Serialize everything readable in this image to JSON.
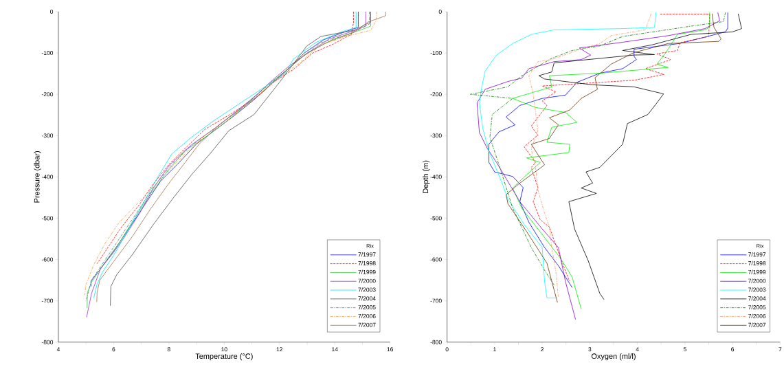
{
  "chart_data": [
    {
      "type": "line",
      "xlabel": "Temperature (°C)",
      "ylabel": "Pressure (dbar)",
      "legend_title": "Rix",
      "legend": "bottom right",
      "xlim": [
        4,
        16
      ],
      "ylim": [
        -800,
        0
      ],
      "xticks": [
        4,
        {
          "value": 5,
          "label": null
        },
        6,
        {
          "value": 7,
          "label": null
        },
        8,
        {
          "value": 9,
          "label": null
        },
        10,
        {
          "value": 11,
          "label": null
        },
        12,
        {
          "value": 13,
          "label": null
        },
        14,
        {
          "value": 15,
          "label": null
        },
        16
      ],
      "yticks": [
        -800,
        -700,
        -600,
        -500,
        -400,
        -300,
        -200,
        -100,
        0
      ],
      "series": [
        {
          "name": "7/1997",
          "color": "#1414c8",
          "line_style": "solid",
          "x": [
            14.85,
            14.85,
            14.4,
            13.6,
            12.9,
            12.3,
            11.7,
            11.05,
            10.4,
            9.6,
            9.0,
            8.3,
            7.7,
            7.1,
            6.5,
            6.0,
            5.5,
            5.18,
            5.18
          ],
          "values": [
            0,
            -38,
            -48,
            -68,
            -100,
            -140,
            -175,
            -215,
            -250,
            -290,
            -320,
            -370,
            -410,
            -470,
            -530,
            -580,
            -625,
            -652,
            -665
          ]
        },
        {
          "name": "7/1998",
          "color": "#ff0000",
          "line_style": "dashed",
          "x": [
            14.68,
            14.68,
            14.6,
            13.9,
            13.2,
            12.5,
            11.8,
            11.1,
            10.3,
            9.3,
            8.6,
            8.0,
            7.4,
            6.9,
            6.3,
            5.8,
            5.4
          ],
          "values": [
            0,
            -25,
            -55,
            -80,
            -100,
            -140,
            -170,
            -210,
            -245,
            -285,
            -330,
            -370,
            -420,
            -470,
            -520,
            -570,
            -610
          ]
        },
        {
          "name": "7/1999",
          "color": "#33cc33",
          "line_style": "solid",
          "x": [
            15.3,
            15.3,
            14.9,
            14.0,
            13.0,
            12.2,
            11.6,
            10.8,
            10.0,
            9.3,
            8.6,
            7.9,
            7.3,
            6.8,
            6.2,
            5.7,
            5.2,
            5.05,
            5.04
          ],
          "values": [
            0,
            -35,
            -45,
            -65,
            -100,
            -145,
            -175,
            -225,
            -270,
            -305,
            -335,
            -390,
            -445,
            -495,
            -560,
            -605,
            -655,
            -680,
            -718
          ]
        },
        {
          "name": "7/2000",
          "color": "#9933cc",
          "line_style": "solid",
          "x": [
            15.12,
            15.12,
            14.8,
            13.8,
            12.99,
            12.32,
            11.74,
            11.16,
            10.5,
            9.67,
            8.84,
            8.02,
            7.44,
            6.94,
            6.36,
            5.95,
            5.53,
            5.2,
            5.02
          ],
          "values": [
            0,
            -35,
            -44,
            -66,
            -102,
            -133,
            -166,
            -202,
            -238,
            -282,
            -321,
            -371,
            -427,
            -488,
            -549,
            -587,
            -621,
            -682,
            -740
          ]
        },
        {
          "name": "7/2003",
          "color": "#00e5ff",
          "line_style": "solid",
          "x": [
            14.77,
            14.77,
            14.2,
            13.3,
            12.5,
            12.2,
            11.4,
            10.5,
            9.6,
            8.8,
            8.1,
            7.6,
            7.1,
            6.6,
            6.0,
            5.6,
            5.4,
            5.28
          ],
          "values": [
            0,
            -38,
            -50,
            -75,
            -115,
            -150,
            -185,
            -225,
            -265,
            -305,
            -345,
            -400,
            -460,
            -520,
            -590,
            -630,
            -660,
            -693
          ]
        },
        {
          "name": "7/2004",
          "color": "#4d4d4d",
          "line_style": "solid",
          "x": [
            15.3,
            15.3,
            14.7,
            13.5,
            12.99,
            12.0,
            11.08,
            10.17,
            9.5,
            8.84,
            8.18,
            7.44,
            6.69,
            6.11,
            5.9,
            5.88
          ],
          "values": [
            0,
            -25,
            -45,
            -60,
            -83,
            -171,
            -249,
            -288,
            -343,
            -393,
            -449,
            -515,
            -587,
            -637,
            -665,
            -712
          ]
        },
        {
          "name": "7/2005",
          "color": "#5a7a7a",
          "line_style": "dashdot",
          "x": [
            15.25,
            15.25,
            14.5,
            13.5,
            12.8,
            12.1,
            11.3,
            10.5,
            9.7,
            8.9,
            8.1,
            7.5,
            6.9,
            6.3,
            5.7,
            5.2,
            5.0
          ],
          "values": [
            0,
            -30,
            -55,
            -75,
            -110,
            -150,
            -195,
            -240,
            -280,
            -320,
            -370,
            -420,
            -480,
            -540,
            -600,
            -650,
            -700
          ]
        },
        {
          "name": "7/2006",
          "color": "#ff9933",
          "line_style": "dashdot",
          "x": [
            15.51,
            15.51,
            15.3,
            14.4,
            13.5,
            12.7,
            11.9,
            11.0,
            10.2,
            9.3,
            8.5,
            7.7,
            7.0,
            6.2,
            5.7,
            5.3,
            5.0,
            4.95
          ],
          "values": [
            0,
            -20,
            -45,
            -60,
            -80,
            -125,
            -165,
            -215,
            -260,
            -300,
            -350,
            -405,
            -455,
            -510,
            -560,
            -610,
            -660,
            -686
          ]
        },
        {
          "name": "7/2007",
          "color": "#a0704a",
          "line_style": "solid",
          "x": [
            15.84,
            15.84,
            15.2,
            14.7,
            13.7,
            12.9,
            12.1,
            11.4,
            10.6,
            9.8,
            9.1,
            8.3,
            8.06,
            7.35,
            6.69,
            6.0,
            5.5,
            5.4,
            5.39
          ],
          "values": [
            0,
            -10,
            -25,
            -50,
            -75,
            -105,
            -150,
            -195,
            -235,
            -275,
            -320,
            -390,
            -410,
            -476,
            -543,
            -605,
            -650,
            -680,
            -703
          ]
        }
      ]
    },
    {
      "type": "line",
      "xlabel": "Oxygen (ml/l)",
      "ylabel": "Depth (m)",
      "legend_title": "Rix",
      "legend": "bottom right",
      "xlim": [
        0,
        7
      ],
      "ylim": [
        -800,
        0
      ],
      "xticks": [
        0,
        {
          "value": 0.5,
          "label": null
        },
        1,
        {
          "value": 1.5,
          "label": null
        },
        2,
        {
          "value": 2.5,
          "label": null
        },
        3,
        {
          "value": 3.5,
          "label": null
        },
        4,
        {
          "value": 4.5,
          "label": null
        },
        5,
        {
          "value": 5.5,
          "label": null
        },
        6,
        {
          "value": 6.5,
          "label": null
        },
        7
      ],
      "yticks": [
        -800,
        -700,
        -600,
        -500,
        -400,
        -300,
        -200,
        -100,
        0
      ],
      "series": [
        {
          "name": "7/1997",
          "color": "#0000ff",
          "line_style": "solid",
          "x": [
            5.9,
            5.9,
            5.85,
            4.89,
            3.93,
            3.93,
            3.98,
            3.69,
            3.21,
            2.73,
            2.49,
            2.0,
            1.53,
            1.24,
            1.43,
            1.09,
            0.88,
            0.88,
            1.0,
            1.38,
            1.6,
            1.53,
            1.72,
            2.05,
            2.34,
            2.63
          ],
          "values": [
            -2,
            -40,
            -49,
            -77,
            -91,
            -108,
            -116,
            -138,
            -149,
            -171,
            -202,
            -210,
            -227,
            -255,
            -274,
            -291,
            -321,
            -365,
            -388,
            -399,
            -426,
            -460,
            -510,
            -571,
            -615,
            -668
          ]
        },
        {
          "name": "7/1998",
          "color": "#ff0000",
          "line_style": "dashed",
          "x": [
            4.48,
            5.52,
            5.5,
            4.9,
            4.84,
            4.41,
            4.7,
            4.17,
            4.56,
            3.93,
            2.82,
            2.0,
            2.29,
            2.0,
            2.1,
            1.77,
            1.91,
            1.62,
            1.86,
            1.77,
            1.91,
            1.81,
            1.96,
            2.15,
            2.25,
            2.39,
            2.57
          ],
          "values": [
            -6,
            -6,
            -60,
            -75,
            -94,
            -102,
            -116,
            -138,
            -152,
            -166,
            -174,
            -180,
            -194,
            -216,
            -227,
            -277,
            -299,
            -327,
            -365,
            -377,
            -426,
            -460,
            -504,
            -521,
            -554,
            -598,
            -652
          ]
        },
        {
          "name": "7/1999",
          "color": "#00ee00",
          "line_style": "solid",
          "x": [
            5.52,
            5.52,
            5.42,
            4.84,
            4.75,
            4.6,
            4.41,
            4.65,
            3.21,
            2.15,
            2.2,
            1.38,
            1.86,
            2.49,
            2.73,
            2.2,
            2.1,
            2.58,
            2.56,
            1.67,
            1.96,
            1.53,
            1.38,
            1.57,
            1.91,
            2.39,
            2.63,
            2.82
          ],
          "values": [
            -2,
            -38,
            -44,
            -55,
            -72,
            -99,
            -127,
            -135,
            -149,
            -155,
            -182,
            -210,
            -232,
            -244,
            -268,
            -280,
            -316,
            -321,
            -341,
            -354,
            -365,
            -410,
            -427,
            -476,
            -526,
            -598,
            -643,
            -720
          ]
        },
        {
          "name": "7/2000",
          "color": "#8800cc",
          "line_style": "solid",
          "x": [
            5.69,
            5.73,
            5.42,
            4.65,
            3.69,
            2.78,
            3.02,
            2.82,
            2.25,
            1.72,
            1.57,
            1.28,
            0.8,
            0.63,
            0.68,
            0.85,
            1.04,
            1.53,
            2.0,
            2.34,
            2.49,
            2.7
          ],
          "values": [
            -2,
            -22,
            -41,
            -58,
            -74,
            -88,
            -105,
            -116,
            -121,
            -138,
            -161,
            -169,
            -188,
            -221,
            -293,
            -332,
            -365,
            -460,
            -526,
            -571,
            -654,
            -745
          ]
        },
        {
          "name": "7/2003",
          "color": "#00ffff",
          "line_style": "solid",
          "x": [
            4.39,
            4.36,
            3.69,
            2.25,
            1.77,
            1.38,
            1.04,
            0.8,
            0.73,
            0.68,
            0.75,
            0.88,
            1.14,
            1.28,
            1.62,
            2.0,
            2.05,
            2.1,
            2.29
          ],
          "values": [
            -2,
            -38,
            -41,
            -44,
            -55,
            -77,
            -105,
            -144,
            -182,
            -221,
            -282,
            -338,
            -410,
            -454,
            -515,
            -571,
            -654,
            -693,
            -693
          ]
        },
        {
          "name": "7/2004",
          "color": "#000000",
          "line_style": "solid",
          "x": [
            6.12,
            6.19,
            6.0,
            5.13,
            4.32,
            3.69,
            4.36,
            3.93,
            2.25,
            2.2,
            1.93,
            2.05,
            3.05,
            3.93,
            4.55,
            4.41,
            4.22,
            3.79,
            3.69,
            3.21,
            2.92,
            3.06,
            2.82,
            3.14,
            2.56,
            2.68,
            2.97,
            3.21,
            3.3
          ],
          "values": [
            -5,
            -41,
            -49,
            -55,
            -80,
            -94,
            -104,
            -105,
            -124,
            -146,
            -155,
            -163,
            -177,
            -182,
            -199,
            -221,
            -249,
            -271,
            -321,
            -377,
            -388,
            -415,
            -427,
            -440,
            -460,
            -526,
            -604,
            -682,
            -697
          ]
        },
        {
          "name": "7/2005",
          "color": "#008000",
          "line_style": "dashdot",
          "x": [
            5.85,
            5.81,
            5.13,
            3.69,
            3.21,
            2.63,
            2.2,
            1.57,
            1.28,
            0.49,
            1.38,
            0.95,
            0.9,
            1.14,
            1.38,
            1.77,
            2.05,
            2.25
          ],
          "values": [
            -2,
            -24,
            -35,
            -60,
            -83,
            -94,
            -113,
            -155,
            -182,
            -200,
            -210,
            -249,
            -304,
            -388,
            -476,
            -571,
            -626,
            -662
          ]
        },
        {
          "name": "7/2006",
          "color": "#ff9966",
          "line_style": "dashdot",
          "x": [
            4.29,
            4.17,
            3.45,
            3.21,
            2.73,
            2.2,
            1.91,
            1.72,
            1.81,
            1.86,
            1.91,
            1.77,
            1.86,
            1.91,
            2.05,
            2.15,
            2.2,
            2.29,
            2.34
          ],
          "values": [
            -5,
            -44,
            -58,
            -77,
            -94,
            -116,
            -121,
            -155,
            -199,
            -243,
            -288,
            -332,
            -377,
            -432,
            -488,
            -521,
            -571,
            -632,
            -693
          ]
        },
        {
          "name": "7/2007",
          "color": "#663300",
          "line_style": "solid",
          "x": [
            5.57,
            5.61,
            5.76,
            5.71,
            4.65,
            3.93,
            3.45,
            3.11,
            3.16,
            2.82,
            2.58,
            2.15,
            2.34,
            2.15,
            1.77,
            2.05,
            1.53,
            1.24,
            1.28,
            1.67,
            2.1,
            2.32
          ],
          "values": [
            -5,
            -38,
            -66,
            -72,
            -77,
            -99,
            -127,
            -160,
            -188,
            -210,
            -238,
            -257,
            -274,
            -307,
            -321,
            -371,
            -415,
            -443,
            -465,
            -532,
            -609,
            -704
          ]
        }
      ]
    }
  ]
}
